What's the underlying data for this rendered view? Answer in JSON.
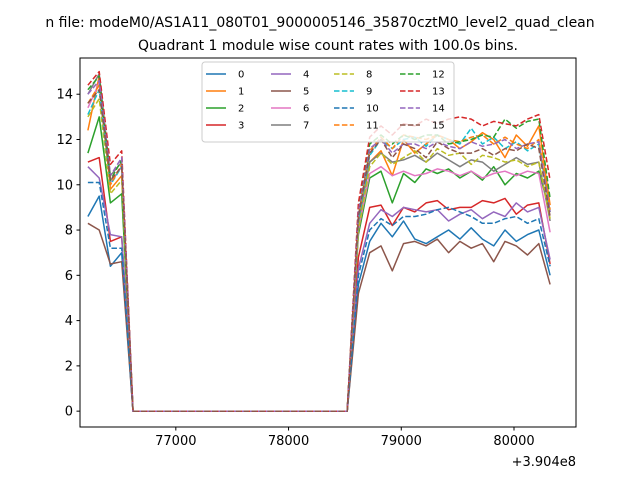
{
  "figure": {
    "suptitle": "n file: modeM0/AS1A11_080T01_9000005146_35870cztM0_level2_quad_clean",
    "title": "Quadrant 1 module wise count rates with 100.0s bins.",
    "offset_text": "+3.904e8"
  },
  "chart_data": {
    "type": "line",
    "title": "Quadrant 1 module wise count rates with 100.0s bins.",
    "xlabel": "",
    "ylabel": "",
    "x_offset": 390400000,
    "xlim": [
      76150,
      80550
    ],
    "ylim": [
      -0.7,
      15.6
    ],
    "xticks": [
      77000,
      78000,
      79000,
      80000
    ],
    "xtick_labels": [
      "77000",
      "78000",
      "79000",
      "80000"
    ],
    "yticks": [
      0,
      2,
      4,
      6,
      8,
      10,
      12,
      14
    ],
    "ytick_labels": [
      "0",
      "2",
      "4",
      "6",
      "8",
      "10",
      "12",
      "14"
    ],
    "grid": false,
    "legend_position": "upper center",
    "legend_columns": 4,
    "x": [
      76220,
      76320,
      76420,
      76520,
      76620,
      76720,
      76820,
      76920,
      77020,
      77120,
      77220,
      77320,
      77420,
      77520,
      77620,
      77720,
      77820,
      77920,
      78020,
      78120,
      78220,
      78320,
      78420,
      78520,
      78620,
      78720,
      78820,
      78920,
      79020,
      79120,
      79220,
      79320,
      79420,
      79520,
      79620,
      79720,
      79820,
      79920,
      80020,
      80120,
      80220,
      80320
    ],
    "series": [
      {
        "name": "0",
        "color": "#1f77b4",
        "style": "solid",
        "values": [
          8.6,
          9.5,
          6.4,
          7.0,
          0,
          0,
          0,
          0,
          0,
          0,
          0,
          0,
          0,
          0,
          0,
          0,
          0,
          0,
          0,
          0,
          0,
          0,
          0,
          0,
          5.6,
          7.5,
          8.3,
          7.7,
          8.4,
          7.6,
          7.4,
          7.7,
          8.0,
          7.6,
          8.1,
          7.6,
          7.3,
          8.0,
          7.5,
          7.8,
          8.0,
          6.0
        ]
      },
      {
        "name": "1",
        "color": "#ff7f0e",
        "style": "solid",
        "values": [
          12.4,
          14.8,
          9.8,
          10.4,
          0,
          0,
          0,
          0,
          0,
          0,
          0,
          0,
          0,
          0,
          0,
          0,
          0,
          0,
          0,
          0,
          0,
          0,
          0,
          0,
          8.4,
          11.0,
          11.5,
          10.4,
          12.0,
          11.4,
          11.8,
          12.2,
          12.0,
          11.6,
          11.9,
          12.3,
          12.0,
          11.2,
          12.2,
          11.7,
          12.6,
          9.1
        ]
      },
      {
        "name": "2",
        "color": "#2ca02c",
        "style": "solid",
        "values": [
          11.4,
          13.0,
          9.2,
          9.6,
          0,
          0,
          0,
          0,
          0,
          0,
          0,
          0,
          0,
          0,
          0,
          0,
          0,
          0,
          0,
          0,
          0,
          0,
          0,
          0,
          7.8,
          10.3,
          10.6,
          9.2,
          10.5,
          10.1,
          10.7,
          10.5,
          10.7,
          10.3,
          10.6,
          10.2,
          10.8,
          10.0,
          10.5,
          10.3,
          10.6,
          8.8
        ]
      },
      {
        "name": "3",
        "color": "#d62728",
        "style": "solid",
        "values": [
          11.0,
          11.2,
          7.5,
          7.7,
          0,
          0,
          0,
          0,
          0,
          0,
          0,
          0,
          0,
          0,
          0,
          0,
          0,
          0,
          0,
          0,
          0,
          0,
          0,
          0,
          6.8,
          9.0,
          9.1,
          8.2,
          9.0,
          8.8,
          9.2,
          9.3,
          8.9,
          9.0,
          9.0,
          9.3,
          9.2,
          9.4,
          8.7,
          9.1,
          9.2,
          6.5
        ]
      },
      {
        "name": "4",
        "color": "#9467bd",
        "style": "solid",
        "values": [
          10.8,
          10.3,
          7.8,
          7.7,
          0,
          0,
          0,
          0,
          0,
          0,
          0,
          0,
          0,
          0,
          0,
          0,
          0,
          0,
          0,
          0,
          0,
          0,
          0,
          0,
          6.3,
          8.3,
          8.9,
          8.6,
          9.0,
          8.9,
          8.8,
          8.9,
          8.4,
          8.7,
          8.9,
          8.5,
          8.8,
          8.6,
          9.2,
          8.8,
          9.0,
          6.7
        ]
      },
      {
        "name": "5",
        "color": "#8c564b",
        "style": "solid",
        "values": [
          8.3,
          8.0,
          6.5,
          6.6,
          0,
          0,
          0,
          0,
          0,
          0,
          0,
          0,
          0,
          0,
          0,
          0,
          0,
          0,
          0,
          0,
          0,
          0,
          0,
          0,
          5.2,
          7.0,
          7.3,
          6.2,
          7.4,
          7.5,
          7.3,
          7.6,
          7.0,
          7.5,
          7.2,
          7.4,
          6.6,
          7.5,
          7.3,
          6.9,
          7.4,
          5.6
        ]
      },
      {
        "name": "6",
        "color": "#e377c2",
        "style": "solid",
        "values": [
          13.4,
          14.5,
          10.1,
          10.8,
          0,
          0,
          0,
          0,
          0,
          0,
          0,
          0,
          0,
          0,
          0,
          0,
          0,
          0,
          0,
          0,
          0,
          0,
          0,
          0,
          8.0,
          10.5,
          10.8,
          10.4,
          10.6,
          10.4,
          10.5,
          10.7,
          10.6,
          10.4,
          10.6,
          10.3,
          10.5,
          10.6,
          10.4,
          10.6,
          10.5,
          7.9
        ]
      },
      {
        "name": "7",
        "color": "#7f7f7f",
        "style": "solid",
        "values": [
          14.0,
          14.9,
          10.4,
          11.0,
          0,
          0,
          0,
          0,
          0,
          0,
          0,
          0,
          0,
          0,
          0,
          0,
          0,
          0,
          0,
          0,
          0,
          0,
          0,
          0,
          8.3,
          11.0,
          11.4,
          11.0,
          11.1,
          11.3,
          11.0,
          11.4,
          11.1,
          10.8,
          11.1,
          11.0,
          10.6,
          10.9,
          11.2,
          10.9,
          11.0,
          8.4
        ]
      },
      {
        "name": "8",
        "color": "#bcbd22",
        "style": "dashed",
        "values": [
          13.0,
          13.8,
          9.6,
          10.2,
          0,
          0,
          0,
          0,
          0,
          0,
          0,
          0,
          0,
          0,
          0,
          0,
          0,
          0,
          0,
          0,
          0,
          0,
          0,
          0,
          8.0,
          10.8,
          11.4,
          10.9,
          11.2,
          11.5,
          11.0,
          11.6,
          11.3,
          11.4,
          10.9,
          11.3,
          11.2,
          11.0,
          11.1,
          10.8,
          11.0,
          8.5
        ]
      },
      {
        "name": "9",
        "color": "#17becf",
        "style": "dashed",
        "values": [
          13.1,
          14.2,
          10.0,
          10.8,
          0,
          0,
          0,
          0,
          0,
          0,
          0,
          0,
          0,
          0,
          0,
          0,
          0,
          0,
          0,
          0,
          0,
          0,
          0,
          0,
          8.4,
          11.3,
          12.0,
          11.6,
          12.0,
          12.1,
          11.7,
          12.2,
          12.0,
          11.8,
          12.5,
          11.8,
          12.1,
          11.6,
          11.9,
          11.5,
          11.8,
          8.8
        ]
      },
      {
        "name": "10",
        "color": "#1f77b4",
        "style": "dashed",
        "values": [
          10.1,
          10.1,
          7.2,
          7.2,
          0,
          0,
          0,
          0,
          0,
          0,
          0,
          0,
          0,
          0,
          0,
          0,
          0,
          0,
          0,
          0,
          0,
          0,
          0,
          0,
          6.0,
          8.0,
          8.5,
          8.2,
          8.6,
          8.6,
          8.7,
          8.9,
          9.0,
          8.8,
          8.6,
          8.3,
          8.3,
          8.5,
          8.6,
          8.3,
          8.5,
          6.4
        ]
      },
      {
        "name": "11",
        "color": "#ff7f0e",
        "style": "dashed",
        "values": [
          13.6,
          14.4,
          10.0,
          10.9,
          0,
          0,
          0,
          0,
          0,
          0,
          0,
          0,
          0,
          0,
          0,
          0,
          0,
          0,
          0,
          0,
          0,
          0,
          0,
          0,
          8.6,
          11.5,
          12.1,
          11.6,
          12.2,
          12.1,
          12.0,
          12.2,
          12.0,
          11.9,
          12.1,
          12.2,
          11.8,
          12.1,
          11.8,
          11.6,
          12.0,
          8.9
        ]
      },
      {
        "name": "12",
        "color": "#2ca02c",
        "style": "dashed",
        "values": [
          14.2,
          14.8,
          10.2,
          11.1,
          0,
          0,
          0,
          0,
          0,
          0,
          0,
          0,
          0,
          0,
          0,
          0,
          0,
          0,
          0,
          0,
          0,
          0,
          0,
          0,
          8.9,
          11.8,
          12.2,
          11.8,
          12.2,
          12.0,
          12.2,
          12.2,
          11.8,
          11.9,
          12.0,
          12.2,
          12.1,
          12.9,
          12.5,
          12.8,
          12.9,
          9.4
        ]
      },
      {
        "name": "13",
        "color": "#d62728",
        "style": "dashed",
        "values": [
          14.4,
          15.0,
          10.9,
          11.5,
          0,
          0,
          0,
          0,
          0,
          0,
          0,
          0,
          0,
          0,
          0,
          0,
          0,
          0,
          0,
          0,
          0,
          0,
          0,
          0,
          9.2,
          12.1,
          12.6,
          12.2,
          12.7,
          12.6,
          12.9,
          12.7,
          12.9,
          13.0,
          12.9,
          12.6,
          12.8,
          12.7,
          12.6,
          12.9,
          13.1,
          10.2
        ]
      },
      {
        "name": "14",
        "color": "#9467bd",
        "style": "dashed",
        "values": [
          14.0,
          14.6,
          10.4,
          11.2,
          0,
          0,
          0,
          0,
          0,
          0,
          0,
          0,
          0,
          0,
          0,
          0,
          0,
          0,
          0,
          0,
          0,
          0,
          0,
          0,
          8.8,
          11.6,
          12.0,
          11.4,
          11.8,
          11.8,
          11.6,
          11.9,
          11.7,
          11.6,
          11.9,
          11.7,
          11.8,
          12.0,
          11.6,
          11.8,
          11.9,
          8.8
        ]
      },
      {
        "name": "15",
        "color": "#8c564b",
        "style": "dashed",
        "values": [
          13.6,
          14.2,
          10.2,
          10.8,
          0,
          0,
          0,
          0,
          0,
          0,
          0,
          0,
          0,
          0,
          0,
          0,
          0,
          0,
          0,
          0,
          0,
          0,
          0,
          0,
          8.6,
          11.4,
          12.0,
          11.2,
          11.8,
          11.6,
          11.2,
          11.9,
          11.6,
          11.4,
          11.4,
          11.6,
          11.3,
          11.6,
          11.5,
          11.8,
          11.6,
          8.6
        ]
      }
    ]
  }
}
